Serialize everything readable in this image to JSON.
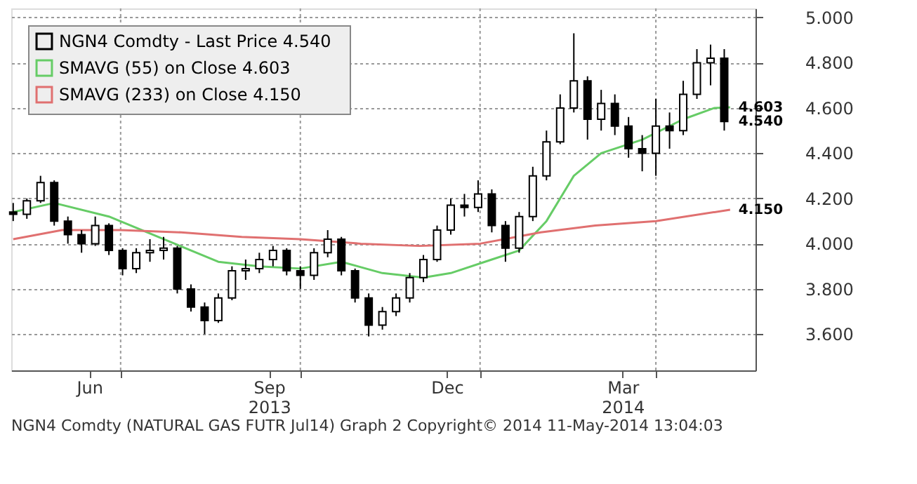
{
  "chart_data": {
    "type": "candlestick",
    "series": [
      {
        "type": "candlestick",
        "name": "NGN4 Comdty - Last Price   4.540",
        "color": "#000000",
        "x": [
          "2013-05-07",
          "2013-05-14",
          "2013-05-21",
          "2013-05-28",
          "2013-06-04",
          "2013-06-11",
          "2013-06-18",
          "2013-06-25",
          "2013-07-02",
          "2013-07-09",
          "2013-07-16",
          "2013-07-23",
          "2013-07-30",
          "2013-08-06",
          "2013-08-13",
          "2013-08-20",
          "2013-08-27",
          "2013-09-03",
          "2013-09-10",
          "2013-09-17",
          "2013-09-24",
          "2013-10-01",
          "2013-10-08",
          "2013-10-15",
          "2013-10-22",
          "2013-10-29",
          "2013-11-05",
          "2013-11-12",
          "2013-11-19",
          "2013-11-26",
          "2013-12-03",
          "2013-12-10",
          "2013-12-17",
          "2013-12-24",
          "2013-12-31",
          "2014-01-07",
          "2014-01-14",
          "2014-01-21",
          "2014-01-28",
          "2014-02-04",
          "2014-02-11",
          "2014-02-18",
          "2014-02-25",
          "2014-03-04",
          "2014-03-11",
          "2014-03-18",
          "2014-03-25",
          "2014-04-01",
          "2014-04-08",
          "2014-04-15",
          "2014-04-22",
          "2014-04-29",
          "2014-05-06"
        ],
        "ohlc": [
          [
            4.14,
            4.18,
            4.1,
            4.13
          ],
          [
            4.13,
            4.2,
            4.11,
            4.19
          ],
          [
            4.19,
            4.3,
            4.18,
            4.27
          ],
          [
            4.27,
            4.28,
            4.08,
            4.1
          ],
          [
            4.1,
            4.12,
            4.0,
            4.04
          ],
          [
            4.04,
            4.06,
            3.96,
            4.0
          ],
          [
            4.0,
            4.12,
            3.99,
            4.08
          ],
          [
            4.08,
            4.09,
            3.95,
            3.97
          ],
          [
            3.97,
            3.98,
            3.86,
            3.89
          ],
          [
            3.89,
            3.98,
            3.87,
            3.96
          ],
          [
            3.96,
            4.02,
            3.92,
            3.97
          ],
          [
            3.97,
            4.03,
            3.93,
            3.98
          ],
          [
            3.98,
            3.99,
            3.78,
            3.8
          ],
          [
            3.8,
            3.82,
            3.7,
            3.72
          ],
          [
            3.72,
            3.74,
            3.6,
            3.66
          ],
          [
            3.66,
            3.78,
            3.65,
            3.76
          ],
          [
            3.76,
            3.9,
            3.75,
            3.88
          ],
          [
            3.88,
            3.93,
            3.84,
            3.89
          ],
          [
            3.89,
            3.96,
            3.87,
            3.93
          ],
          [
            3.93,
            3.99,
            3.9,
            3.97
          ],
          [
            3.97,
            3.98,
            3.86,
            3.88
          ],
          [
            3.88,
            3.9,
            3.8,
            3.86
          ],
          [
            3.86,
            3.98,
            3.84,
            3.96
          ],
          [
            3.96,
            4.06,
            3.94,
            4.02
          ],
          [
            4.02,
            4.03,
            3.86,
            3.88
          ],
          [
            3.88,
            3.89,
            3.74,
            3.76
          ],
          [
            3.76,
            3.78,
            3.59,
            3.64
          ],
          [
            3.64,
            3.72,
            3.62,
            3.7
          ],
          [
            3.7,
            3.78,
            3.68,
            3.76
          ],
          [
            3.76,
            3.87,
            3.74,
            3.85
          ],
          [
            3.85,
            3.95,
            3.83,
            3.93
          ],
          [
            3.93,
            4.08,
            3.92,
            4.06
          ],
          [
            4.06,
            4.2,
            4.04,
            4.17
          ],
          [
            4.17,
            4.22,
            4.12,
            4.16
          ],
          [
            4.16,
            4.28,
            4.14,
            4.22
          ],
          [
            4.22,
            4.24,
            4.05,
            4.08
          ],
          [
            4.08,
            4.1,
            3.92,
            3.98
          ],
          [
            3.98,
            4.14,
            3.96,
            4.12
          ],
          [
            4.12,
            4.34,
            4.1,
            4.3
          ],
          [
            4.3,
            4.5,
            4.28,
            4.45
          ],
          [
            4.45,
            4.66,
            4.44,
            4.6
          ],
          [
            4.6,
            4.93,
            4.58,
            4.72
          ],
          [
            4.72,
            4.74,
            4.46,
            4.55
          ],
          [
            4.55,
            4.68,
            4.5,
            4.62
          ],
          [
            4.62,
            4.66,
            4.48,
            4.52
          ],
          [
            4.52,
            4.56,
            4.38,
            4.42
          ],
          [
            4.42,
            4.48,
            4.32,
            4.4
          ],
          [
            4.4,
            4.64,
            4.3,
            4.52
          ],
          [
            4.52,
            4.58,
            4.42,
            4.5
          ],
          [
            4.5,
            4.72,
            4.48,
            4.66
          ],
          [
            4.66,
            4.86,
            4.64,
            4.8
          ],
          [
            4.8,
            4.88,
            4.7,
            4.82
          ],
          [
            4.82,
            4.86,
            4.5,
            4.54
          ]
        ]
      },
      {
        "type": "line",
        "name": "SMAVG (55) on Close   4.603",
        "color": "#66cc66",
        "x": [
          "2013-05-07",
          "2013-05-28",
          "2013-06-25",
          "2013-07-23",
          "2013-08-20",
          "2013-09-10",
          "2013-10-01",
          "2013-10-22",
          "2013-11-12",
          "2013-12-03",
          "2013-12-17",
          "2014-01-07",
          "2014-01-21",
          "2014-02-04",
          "2014-02-18",
          "2014-03-04",
          "2014-03-25",
          "2014-04-15",
          "2014-05-01",
          "2014-05-09"
        ],
        "values": [
          4.14,
          4.18,
          4.12,
          4.02,
          3.92,
          3.9,
          3.89,
          3.92,
          3.87,
          3.85,
          3.87,
          3.93,
          3.97,
          4.1,
          4.3,
          4.4,
          4.46,
          4.55,
          4.6,
          4.603
        ]
      },
      {
        "type": "line",
        "name": "SMAVG (233) on Close   4.150",
        "color": "#e07070",
        "x": [
          "2013-05-07",
          "2013-06-01",
          "2013-07-01",
          "2013-08-01",
          "2013-09-01",
          "2013-10-01",
          "2013-11-01",
          "2013-12-01",
          "2014-01-01",
          "2014-02-01",
          "2014-03-01",
          "2014-04-01",
          "2014-05-09"
        ],
        "values": [
          4.02,
          4.06,
          4.06,
          4.05,
          4.03,
          4.02,
          4.0,
          3.99,
          4.0,
          4.05,
          4.08,
          4.1,
          4.15
        ]
      }
    ],
    "xlim": [
      "2013-05-06",
      "2014-05-22"
    ],
    "xticks": [
      {
        "value": "2013-06-15",
        "label": "Jun"
      },
      {
        "value": "2013-09-15",
        "label": "Sep\n2013"
      },
      {
        "value": "2013-12-15",
        "label": "Dec"
      },
      {
        "value": "2014-03-15",
        "label": "Mar\n2014"
      },
      {
        "value": "2013-07-01",
        "label": null
      },
      {
        "value": "2013-10-01",
        "label": null
      },
      {
        "value": "2014-01-01",
        "label": null
      },
      {
        "value": "2014-04-01",
        "label": null
      }
    ],
    "ylim": [
      3.44,
      5.04
    ],
    "yticks": [
      {
        "value": 3.6,
        "label": "3.600"
      },
      {
        "value": 3.8,
        "label": "3.800"
      },
      {
        "value": 4.0,
        "label": "4.000"
      },
      {
        "value": 4.2,
        "label": "4.200"
      },
      {
        "value": 4.4,
        "label": "4.400"
      },
      {
        "value": 4.6,
        "label": "4.600"
      },
      {
        "value": 4.8,
        "label": "4.800"
      },
      {
        "value": 5.0,
        "label": "5.000"
      }
    ],
    "grid": true,
    "legend": "top left",
    "annotations": [
      {
        "text": "4.603",
        "x": "2014-05-09",
        "y": 4.603
      },
      {
        "text": "4.540",
        "x": "2014-05-09",
        "y": 4.54
      },
      {
        "text": "4.150",
        "x": "2014-05-09",
        "y": 4.15
      },
      "NGN4 Comdty (NATURAL GAS FUTR  Jul14) Graph 2  Copyright© 2014  11-May-2014 13:04:03"
    ]
  }
}
